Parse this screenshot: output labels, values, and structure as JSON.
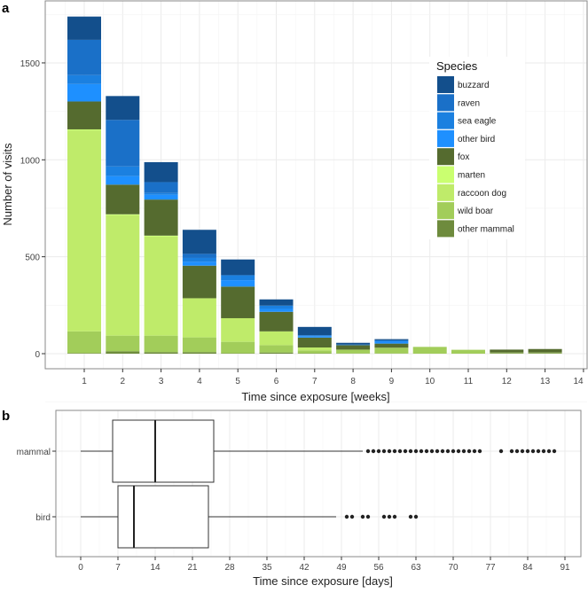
{
  "chart_data": [
    {
      "panel": "a",
      "type": "bar",
      "stacked": true,
      "xlabel": "Time since exposure [weeks]",
      "ylabel": "Number of visits",
      "xticks": [
        1,
        2,
        3,
        4,
        5,
        6,
        7,
        8,
        9,
        10,
        11,
        12,
        13,
        14
      ],
      "yticks": [
        0,
        500,
        1000,
        1500
      ],
      "ylim": [
        0,
        1800
      ],
      "grid": true,
      "legend_title": "Species",
      "legend_position": "top-right",
      "categories": [
        1,
        2,
        3,
        4,
        5,
        6,
        7,
        8,
        9,
        10,
        11,
        12,
        13
      ],
      "series": [
        {
          "name": "other mammal",
          "color": "#6e8b3d",
          "values": [
            3,
            12,
            8,
            8,
            2,
            6,
            2,
            1,
            1,
            0,
            0,
            3,
            3
          ]
        },
        {
          "name": "wild boar",
          "color": "#a2cd5a",
          "values": [
            112,
            81,
            85,
            76,
            59,
            38,
            15,
            20,
            30,
            35,
            20,
            3,
            3
          ]
        },
        {
          "name": "raccoon dog",
          "color": "#bfeb6a",
          "values": [
            1037,
            621,
            511,
            202,
            122,
            71,
            15,
            0,
            0,
            0,
            0,
            0,
            0
          ]
        },
        {
          "name": "marten",
          "color": "#caff70",
          "values": [
            5,
            5,
            5,
            0,
            0,
            0,
            0,
            0,
            0,
            0,
            0,
            0,
            0
          ]
        },
        {
          "name": "fox",
          "color": "#556b2f",
          "values": [
            144,
            153,
            186,
            168,
            163,
            101,
            51,
            23,
            21,
            0,
            0,
            15,
            18
          ]
        },
        {
          "name": "other bird",
          "color": "#1e90ff",
          "values": [
            90,
            44,
            25,
            20,
            33,
            15,
            7,
            0,
            10,
            0,
            0,
            0,
            0
          ]
        },
        {
          "name": "sea eagle",
          "color": "#1b80e0",
          "values": [
            46,
            50,
            9,
            20,
            26,
            17,
            5,
            3,
            7,
            0,
            0,
            0,
            0
          ]
        },
        {
          "name": "raven",
          "color": "#1a70c8",
          "values": [
            182,
            240,
            56,
            21,
            0,
            0,
            0,
            0,
            0,
            0,
            0,
            0,
            0
          ]
        },
        {
          "name": "buzzard",
          "color": "#134f8c",
          "values": [
            120,
            123,
            103,
            124,
            81,
            32,
            43,
            9,
            6,
            0,
            0,
            0,
            0
          ]
        }
      ],
      "legend_order": [
        "buzzard",
        "raven",
        "sea eagle",
        "other bird",
        "fox",
        "marten",
        "raccoon dog",
        "wild boar",
        "other mammal"
      ]
    },
    {
      "panel": "b",
      "type": "boxplot",
      "xlabel": "Time since exposure [days]",
      "ylabel": "",
      "xticks": [
        0,
        7,
        14,
        21,
        28,
        35,
        42,
        49,
        56,
        63,
        70,
        77,
        84,
        91
      ],
      "xlim": [
        -4,
        94
      ],
      "grid": true,
      "groups": [
        {
          "name": "mammal",
          "min": 0,
          "q1": 6,
          "median": 14,
          "q3": 25,
          "max": 53,
          "outliers": [
            54,
            55,
            56,
            57,
            58,
            59,
            60,
            61,
            62,
            63,
            64,
            65,
            66,
            67,
            68,
            69,
            70,
            71,
            72,
            73,
            74,
            75,
            79,
            81,
            82,
            83,
            84,
            85,
            86,
            87,
            88,
            89
          ]
        },
        {
          "name": "bird",
          "min": 0,
          "q1": 7,
          "median": 10,
          "q3": 24,
          "max": 48,
          "outliers": [
            50,
            51,
            53,
            54,
            57,
            58,
            59,
            62,
            63
          ]
        }
      ]
    }
  ],
  "panel_labels": [
    "a",
    "b"
  ]
}
